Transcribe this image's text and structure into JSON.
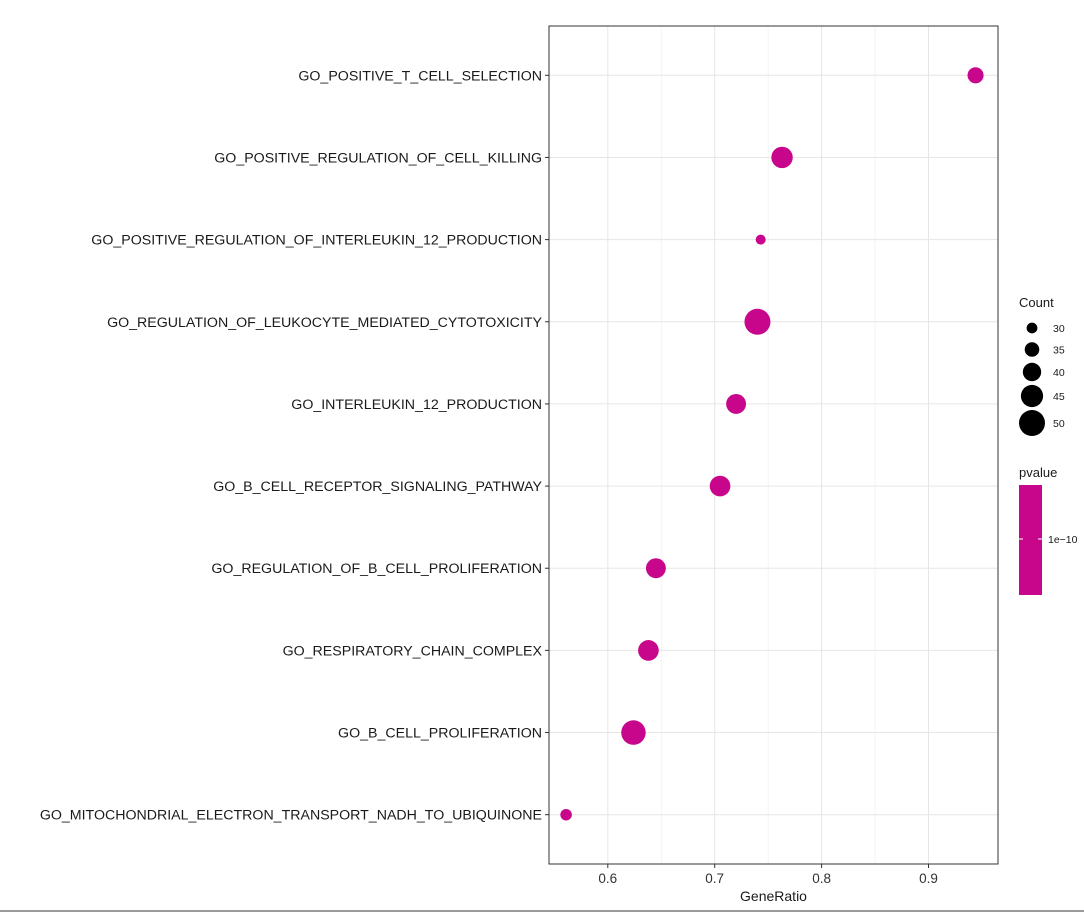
{
  "chart_data": {
    "type": "scatter",
    "xlabel": "GeneRatio",
    "ylabel": "",
    "xlim": [
      0.545,
      0.965
    ],
    "x_ticks": [
      0.6,
      0.7,
      0.8,
      0.9
    ],
    "x_tick_labels": [
      "0.6",
      "0.7",
      "0.8",
      "0.9"
    ],
    "grid": true,
    "point_color": "#C8068C",
    "categories": [
      "GO_MITOCHONDRIAL_ELECTRON_TRANSPORT_NADH_TO_UBIQUINONE",
      "GO_B_CELL_PROLIFERATION",
      "GO_RESPIRATORY_CHAIN_COMPLEX",
      "GO_REGULATION_OF_B_CELL_PROLIFERATION",
      "GO_B_CELL_RECEPTOR_SIGNALING_PATHWAY",
      "GO_INTERLEUKIN_12_PRODUCTION",
      "GO_REGULATION_OF_LEUKOCYTE_MEDIATED_CYTOTOXICITY",
      "GO_POSITIVE_REGULATION_OF_INTERLEUKIN_12_PRODUCTION",
      "GO_POSITIVE_REGULATION_OF_CELL_KILLING",
      "GO_POSITIVE_T_CELL_SELECTION"
    ],
    "points": [
      {
        "term": "GO_POSITIVE_T_CELL_SELECTION",
        "gene_ratio": 0.944,
        "count": 37
      },
      {
        "term": "GO_POSITIVE_REGULATION_OF_CELL_KILLING",
        "gene_ratio": 0.763,
        "count": 44
      },
      {
        "term": "GO_POSITIVE_REGULATION_OF_INTERLEUKIN_12_PRODUCTION",
        "gene_ratio": 0.743,
        "count": 29
      },
      {
        "term": "GO_REGULATION_OF_LEUKOCYTE_MEDIATED_CYTOTOXICITY",
        "gene_ratio": 0.74,
        "count": 50
      },
      {
        "term": "GO_INTERLEUKIN_12_PRODUCTION",
        "gene_ratio": 0.72,
        "count": 42
      },
      {
        "term": "GO_B_CELL_RECEPTOR_SIGNALING_PATHWAY",
        "gene_ratio": 0.705,
        "count": 43
      },
      {
        "term": "GO_REGULATION_OF_B_CELL_PROLIFERATION",
        "gene_ratio": 0.645,
        "count": 42
      },
      {
        "term": "GO_RESPIRATORY_CHAIN_COMPLEX",
        "gene_ratio": 0.638,
        "count": 43
      },
      {
        "term": "GO_B_CELL_PROLIFERATION",
        "gene_ratio": 0.624,
        "count": 48
      },
      {
        "term": "GO_MITOCHONDRIAL_ELECTRON_TRANSPORT_NADH_TO_UBIQUINONE",
        "gene_ratio": 0.561,
        "count": 31
      }
    ],
    "legend_size": {
      "title": "Count",
      "values": [
        30,
        35,
        40,
        45,
        50
      ],
      "labels": [
        "30",
        "35",
        "40",
        "45",
        "50"
      ],
      "position": "right"
    },
    "legend_color": {
      "title": "pvalue",
      "tick_label": "1e−10",
      "color": "#C8068C",
      "position": "right"
    }
  }
}
